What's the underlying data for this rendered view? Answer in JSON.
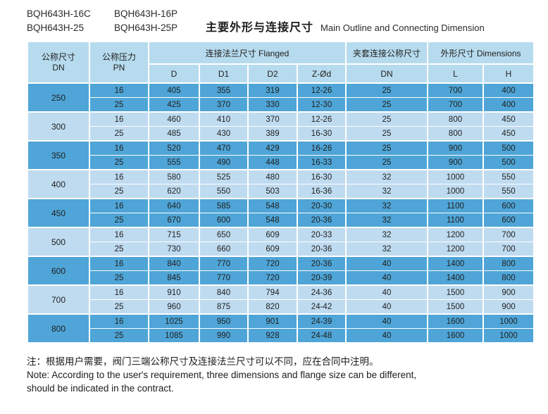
{
  "page": {
    "models": [
      "BQH643H-16C",
      "BQH643H-16P",
      "BQH643H-25",
      "BQH643H-25P"
    ],
    "title_cn": "主要外形与连接尺寸",
    "title_en": "Main Outline and Connecting Dimension"
  },
  "colors": {
    "row_dark": "#4fa5d7",
    "row_light": "#bfdbf0",
    "header_bg": "#b7dbee",
    "table_border": "#74add0",
    "cell_divider": "#ffffff"
  },
  "table": {
    "headers": {
      "dn_cn": "公称尺寸",
      "dn_en": "DN",
      "pn_cn": "公称压力",
      "pn_en": "PN",
      "flanged_group": "连接法兰尺寸 Flanged",
      "flanged_cols": [
        "D",
        "D1",
        "D2",
        "Z-Ød"
      ],
      "jacket_group": "夹套连接公称尺寸",
      "jacket_col": "DN",
      "dims_group": "外形尺寸 Dimensions",
      "dims_cols": [
        "L",
        "H"
      ]
    },
    "groups": [
      {
        "dn": "250",
        "shade": "dark",
        "rows": [
          [
            "16",
            "405",
            "355",
            "319",
            "12-26",
            "25",
            "700",
            "400"
          ],
          [
            "25",
            "425",
            "370",
            "330",
            "12-30",
            "25",
            "700",
            "400"
          ]
        ]
      },
      {
        "dn": "300",
        "shade": "light",
        "rows": [
          [
            "16",
            "460",
            "410",
            "370",
            "12-26",
            "25",
            "800",
            "450"
          ],
          [
            "25",
            "485",
            "430",
            "389",
            "16-30",
            "25",
            "800",
            "450"
          ]
        ]
      },
      {
        "dn": "350",
        "shade": "dark",
        "rows": [
          [
            "16",
            "520",
            "470",
            "429",
            "16-26",
            "25",
            "900",
            "500"
          ],
          [
            "25",
            "555",
            "490",
            "448",
            "16-33",
            "25",
            "900",
            "500"
          ]
        ]
      },
      {
        "dn": "400",
        "shade": "light",
        "rows": [
          [
            "16",
            "580",
            "525",
            "480",
            "16-30",
            "32",
            "1000",
            "550"
          ],
          [
            "25",
            "620",
            "550",
            "503",
            "16-36",
            "32",
            "1000",
            "550"
          ]
        ]
      },
      {
        "dn": "450",
        "shade": "dark",
        "rows": [
          [
            "16",
            "640",
            "585",
            "548",
            "20-30",
            "32",
            "1100",
            "600"
          ],
          [
            "25",
            "670",
            "600",
            "548",
            "20-36",
            "32",
            "1100",
            "600"
          ]
        ]
      },
      {
        "dn": "500",
        "shade": "light",
        "rows": [
          [
            "16",
            "715",
            "650",
            "609",
            "20-33",
            "32",
            "1200",
            "700"
          ],
          [
            "25",
            "730",
            "660",
            "609",
            "20-36",
            "32",
            "1200",
            "700"
          ]
        ]
      },
      {
        "dn": "600",
        "shade": "dark",
        "rows": [
          [
            "16",
            "840",
            "770",
            "720",
            "20-36",
            "40",
            "1400",
            "800"
          ],
          [
            "25",
            "845",
            "770",
            "720",
            "20-39",
            "40",
            "1400",
            "800"
          ]
        ]
      },
      {
        "dn": "700",
        "shade": "light",
        "rows": [
          [
            "16",
            "910",
            "840",
            "794",
            "24-36",
            "40",
            "1500",
            "900"
          ],
          [
            "25",
            "960",
            "875",
            "820",
            "24-42",
            "40",
            "1500",
            "900"
          ]
        ]
      },
      {
        "dn": "800",
        "shade": "dark",
        "rows": [
          [
            "16",
            "1025",
            "950",
            "901",
            "24-39",
            "40",
            "1600",
            "1000"
          ],
          [
            "25",
            "1085",
            "990",
            "928",
            "24-48",
            "40",
            "1600",
            "1000"
          ]
        ]
      }
    ]
  },
  "notes": {
    "cn": "注：根据用户需要，阀门三端公称尺寸及连接法兰尺寸可以不同，应在合同中注明。",
    "en1": "Note: According to the user's requirement, three dimensions and flange size can be different,",
    "en2": "should be indicated in the contract."
  }
}
